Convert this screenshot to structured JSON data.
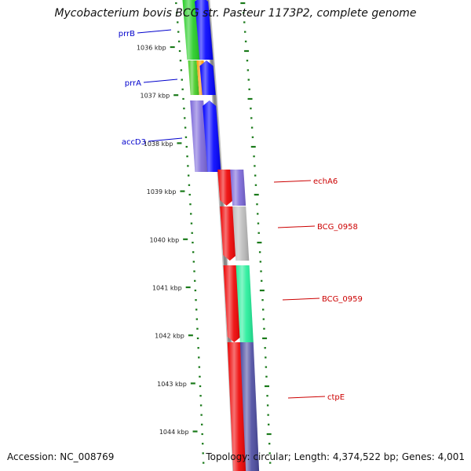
{
  "title": "Mycobacterium bovis BCG str. Pasteur 1173P2, complete genome",
  "footer": {
    "accession": "Accession: NC_008769",
    "summary": "Topology: circular; Length: 4,374,522 bp; Genes: 4,001"
  },
  "ticks": [
    {
      "label": "1036 kbp",
      "kbp": 1036
    },
    {
      "label": "1037 kbp",
      "kbp": 1037
    },
    {
      "label": "1038 kbp",
      "kbp": 1038
    },
    {
      "label": "1039 kbp",
      "kbp": 1039
    },
    {
      "label": "1040 kbp",
      "kbp": 1040
    },
    {
      "label": "1041 kbp",
      "kbp": 1041
    },
    {
      "label": "1042 kbp",
      "kbp": 1042
    },
    {
      "label": "1043 kbp",
      "kbp": 1043
    },
    {
      "label": "1044 kbp",
      "kbp": 1044
    }
  ],
  "gene_labels": [
    {
      "name": "prrB",
      "side": "left",
      "color": "#0000cc"
    },
    {
      "name": "prrA",
      "side": "left",
      "color": "#0000cc"
    },
    {
      "name": "accD3",
      "side": "left",
      "color": "#0000cc"
    },
    {
      "name": "echA6",
      "side": "right",
      "color": "#cc0000"
    },
    {
      "name": "BCG_0958",
      "side": "right",
      "color": "#cc0000"
    },
    {
      "name": "BCG_0959",
      "side": "right",
      "color": "#cc0000"
    },
    {
      "name": "ctpE",
      "side": "right",
      "color": "#cc0000"
    }
  ],
  "colors": {
    "backbone": "#888888",
    "tick": "#1a7a1a",
    "forward_strand": "#0000ff",
    "reverse_strand": "#ee0000",
    "left_label": "#0000cc",
    "right_label": "#cc0000"
  }
}
